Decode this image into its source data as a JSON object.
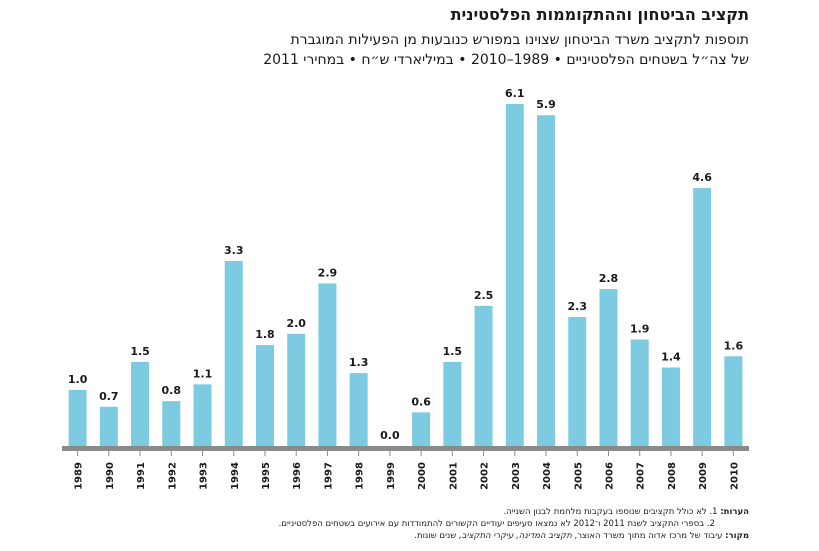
{
  "title": "תקציב הביטחון וההתקוממות הפלסטינית",
  "subtitle_line1": "תוספות לתקציב משרד הביטחון שצוינו במפורש כנובעות מן הפעילות המוגברת",
  "subtitle_line2": "של צה״ל בשטחים הפלסטיניים • 1989–2010 • במיליארדי ש״ח • במחירי 2011",
  "chart_data": {
    "type": "bar",
    "title": "תקציב הביטחון וההתקוממות הפלסטינית",
    "categories": [
      "1989",
      "1990",
      "1991",
      "1992",
      "1993",
      "1994",
      "1995",
      "1996",
      "1997",
      "1998",
      "1999",
      "2000",
      "2001",
      "2002",
      "2003",
      "2004",
      "2005",
      "2006",
      "2007",
      "2008",
      "2009",
      "2010"
    ],
    "values": [
      1.0,
      0.7,
      1.5,
      0.8,
      1.1,
      3.3,
      1.8,
      2.0,
      2.9,
      1.3,
      0.0,
      0.6,
      1.5,
      2.5,
      6.1,
      5.9,
      2.3,
      2.8,
      1.9,
      1.4,
      4.6,
      1.6
    ],
    "data_labels": [
      "1.0",
      "0.7",
      "1.5",
      "0.8",
      "1.1",
      "3.3",
      "1.8",
      "2.0",
      "2.9",
      "1.3",
      "0.0",
      "0.6",
      "1.5",
      "2.5",
      "6.1",
      "5.9",
      "2.3",
      "2.8",
      "1.9",
      "1.4",
      "4.6",
      "1.6"
    ],
    "ylim": [
      0,
      6.1
    ],
    "grid": false,
    "bar_color": "#7ccbe0",
    "axis_color": "#8a8a8a"
  },
  "notes": {
    "notes_label": "הערות:",
    "note1": "1. לא כולל תקציבים שנוספו בעקבות מלחמת לבנון השנייה.",
    "note2": "2. בספרי התקציב לשנת 2011 ו־2012 לא נמצאו סעיפים יעודיים הקשורים להתמודדות עם אירועים בשטחים הפלסטיניים.",
    "source_label": "מקור:",
    "source_text_a": "עיבוד של מרכז אדוה מתוך משרד האוצר,",
    "source_italic": "תקציב המדינה, עיקרי התקציב,",
    "source_text_b": "שנים שונות."
  }
}
